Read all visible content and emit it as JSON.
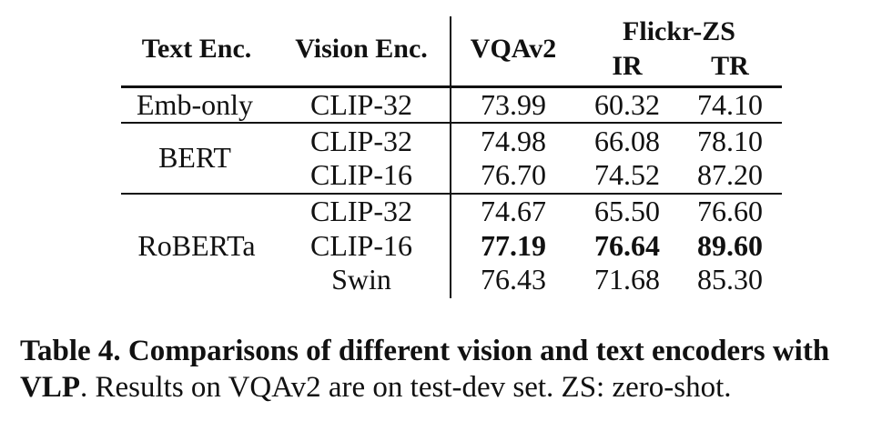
{
  "table": {
    "headers": {
      "text_enc": "Text Enc.",
      "vision_enc": "Vision Enc.",
      "vqa": "VQAv2",
      "flickr": "Flickr-ZS",
      "ir": "IR",
      "tr": "TR"
    },
    "groups": [
      {
        "text_enc": "Emb-only",
        "rows": [
          {
            "vision": "CLIP-32",
            "vqa": "73.99",
            "ir": "60.32",
            "tr": "74.10"
          }
        ]
      },
      {
        "text_enc": "BERT",
        "rows": [
          {
            "vision": "CLIP-32",
            "vqa": "74.98",
            "ir": "66.08",
            "tr": "78.10"
          },
          {
            "vision": "CLIP-16",
            "vqa": "76.70",
            "ir": "74.52",
            "tr": "87.20"
          }
        ]
      },
      {
        "text_enc": "RoBERTa",
        "rows": [
          {
            "vision": "CLIP-32",
            "vqa": "74.67",
            "ir": "65.50",
            "tr": "76.60"
          },
          {
            "vision": "CLIP-16",
            "vqa": "77.19",
            "ir": "76.64",
            "tr": "89.60"
          },
          {
            "vision": "Swin",
            "vqa": "76.43",
            "ir": "71.68",
            "tr": "85.30"
          }
        ]
      }
    ]
  },
  "caption": {
    "bold_part": "Table 4.  Comparisons of different vision and text encoders with VLP",
    "rest": ". Results on VQAv2 are on test-dev set. ZS: zero-shot."
  }
}
